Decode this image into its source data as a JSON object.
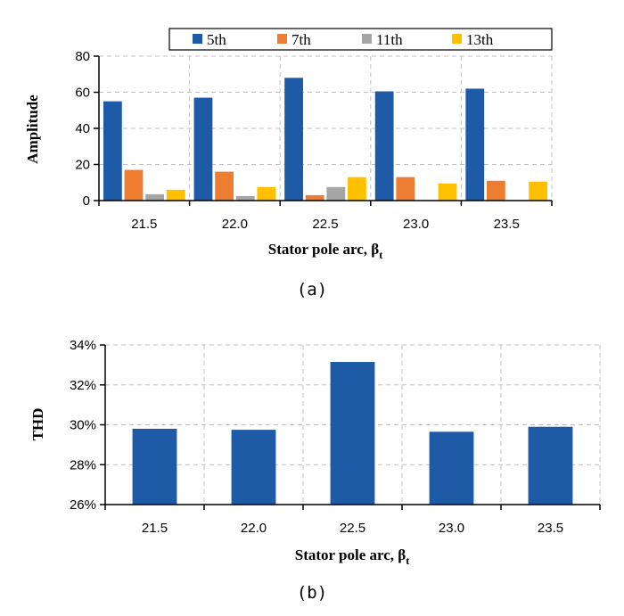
{
  "chart_data": [
    {
      "type": "bar",
      "panel_label": "(a)",
      "categories": [
        "21.5",
        "22.0",
        "22.5",
        "23.0",
        "23.5"
      ],
      "series": [
        {
          "name": "5th",
          "color": "#1f5aa6",
          "values": [
            55,
            57,
            68,
            60.5,
            62
          ]
        },
        {
          "name": "7th",
          "color": "#ed7d31",
          "values": [
            17,
            16,
            3,
            13,
            11
          ]
        },
        {
          "name": "11th",
          "color": "#a5a5a5",
          "values": [
            3.5,
            2.5,
            7.5,
            0,
            0
          ]
        },
        {
          "name": "13th",
          "color": "#ffc000",
          "values": [
            6,
            7.5,
            13,
            9.5,
            10.5
          ]
        }
      ],
      "xlabel": "Stator pole arc, β",
      "xlabel_sub": "t",
      "ylabel": "Amplitude",
      "ylim": [
        0,
        80
      ],
      "yticks": [
        0,
        20,
        40,
        60,
        80
      ],
      "ytick_labels": [
        "0",
        "20",
        "40",
        "60",
        "80"
      ],
      "grid": true,
      "legend_position": "top"
    },
    {
      "type": "bar",
      "panel_label": "(b)",
      "categories": [
        "21.5",
        "22.0",
        "22.5",
        "23.0",
        "23.5"
      ],
      "series": [
        {
          "color": "#1f5aa6",
          "values": [
            29.8,
            29.75,
            33.15,
            29.65,
            29.9
          ]
        }
      ],
      "xlabel": "Stator pole arc, β",
      "xlabel_sub": "t",
      "ylabel": "THD",
      "ylim": [
        26,
        34
      ],
      "yticks": [
        26,
        28,
        30,
        32,
        34
      ],
      "ytick_labels": [
        "26%",
        "28%",
        "30%",
        "32%",
        "34%"
      ],
      "grid": true
    }
  ]
}
